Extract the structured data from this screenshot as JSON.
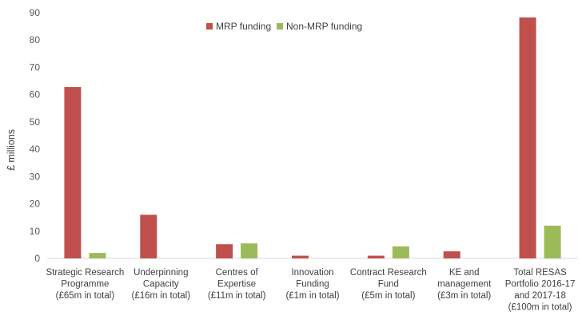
{
  "chart_data": {
    "type": "bar",
    "title": "",
    "ylabel": "£ millions",
    "xlabel": "",
    "ylim": [
      0,
      90
    ],
    "yticks": [
      0,
      10,
      20,
      30,
      40,
      50,
      60,
      70,
      80,
      90
    ],
    "grid": false,
    "legend_position": "top-center",
    "categories": [
      [
        "Strategic Research",
        "Programme",
        "(£65m in total)"
      ],
      [
        "Underpinning",
        "Capacity",
        "(£16m in total)"
      ],
      [
        "Centres of",
        "Expertise",
        "(£11m in total)"
      ],
      [
        "Innovation",
        "Funding",
        "(£1m in total)"
      ],
      [
        "Contract Research",
        "Fund",
        "(£5m in total)"
      ],
      [
        "KE and",
        "management",
        "(£3m in total)"
      ],
      [
        "Total RESAS",
        "Portfolio  2016-17",
        "and 2017-18",
        "(£100m in total)"
      ]
    ],
    "series": [
      {
        "name": "MRP funding",
        "color": "#c0504d",
        "values": [
          62.8,
          16.0,
          5.2,
          1.0,
          1.0,
          2.6,
          88.3
        ]
      },
      {
        "name": "Non-MRP funding",
        "color": "#9bbb59",
        "values": [
          2.0,
          0,
          5.5,
          0,
          4.4,
          0,
          12.0
        ]
      }
    ]
  }
}
